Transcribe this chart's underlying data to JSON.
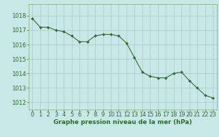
{
  "x": [
    0,
    1,
    2,
    3,
    4,
    5,
    6,
    7,
    8,
    9,
    10,
    11,
    12,
    13,
    14,
    15,
    16,
    17,
    18,
    19,
    20,
    21,
    22,
    23
  ],
  "y": [
    1017.8,
    1017.2,
    1017.2,
    1017.0,
    1016.9,
    1016.6,
    1016.2,
    1016.2,
    1016.6,
    1016.7,
    1016.7,
    1016.6,
    1016.1,
    1015.1,
    1014.1,
    1013.8,
    1013.7,
    1013.7,
    1014.0,
    1014.1,
    1013.5,
    1013.0,
    1012.5,
    1012.3
  ],
  "line_color": "#2d6a2d",
  "marker_color": "#2d6a2d",
  "bg_color": "#c8e8e8",
  "grid_color": "#a8c8c8",
  "xlabel": "Graphe pression niveau de la mer (hPa)",
  "xlabel_color": "#2d6a2d",
  "tick_color": "#2d6a2d",
  "spine_color": "#7aaa7a",
  "ylim": [
    1011.5,
    1018.8
  ],
  "xlim": [
    -0.5,
    23.5
  ],
  "yticks": [
    1012,
    1013,
    1014,
    1015,
    1016,
    1017,
    1018
  ],
  "xticks": [
    0,
    1,
    2,
    3,
    4,
    5,
    6,
    7,
    8,
    9,
    10,
    11,
    12,
    13,
    14,
    15,
    16,
    17,
    18,
    19,
    20,
    21,
    22,
    23
  ],
  "tick_fontsize": 6.0,
  "xlabel_fontsize": 6.5
}
